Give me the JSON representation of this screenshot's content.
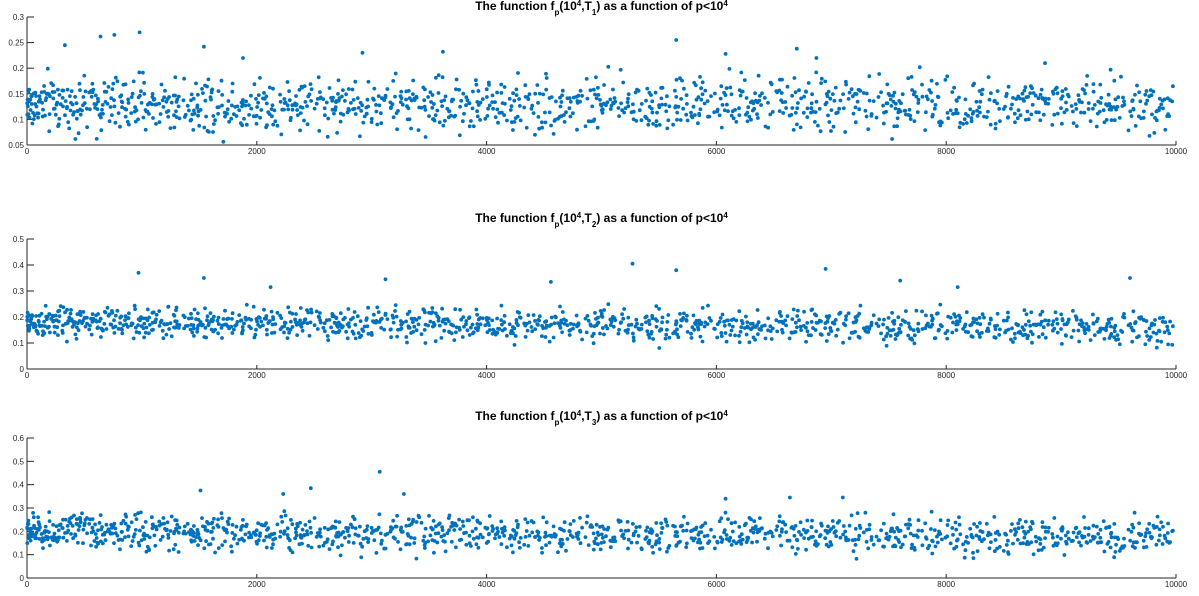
{
  "chart_data": [
    {
      "type": "scatter",
      "title_parts": [
        [
          "The function f",
          ""
        ],
        [
          "p",
          "sub"
        ],
        [
          "(10",
          ""
        ],
        [
          "4",
          "sup"
        ],
        [
          ",T",
          ""
        ],
        [
          "1",
          "sub"
        ],
        [
          ") as a function of p<10",
          ""
        ],
        [
          "4",
          "sup"
        ]
      ],
      "xlim": [
        0,
        10000
      ],
      "ylim": [
        0.05,
        0.3
      ],
      "xticks": [
        "0",
        "2000",
        "4000",
        "6000",
        "8000",
        "10000"
      ],
      "yticks": [
        "0.05",
        "0.1",
        "0.15",
        "0.2",
        "0.25",
        "0.3"
      ],
      "series": [
        {
          "color": "#0072BD",
          "n_points": 1229,
          "y_typical_range": [
            0.06,
            0.2
          ],
          "y_max": 0.27,
          "approx_points": [
            [
              980,
              0.27
            ],
            [
              760,
              0.265
            ],
            [
              640,
              0.262
            ],
            [
              5650,
              0.255
            ],
            [
              1540,
              0.242
            ],
            [
              330,
              0.245
            ],
            [
              6700,
              0.238
            ],
            [
              3620,
              0.232
            ],
            [
              2920,
              0.23
            ],
            [
              6080,
              0.228
            ],
            [
              6870,
              0.22
            ],
            [
              8860,
              0.21
            ],
            [
              1880,
              0.22
            ],
            [
              7770,
              0.202
            ]
          ]
        }
      ]
    },
    {
      "type": "scatter",
      "title_parts": [
        [
          "The function f",
          ""
        ],
        [
          "p",
          "sub"
        ],
        [
          "(10",
          ""
        ],
        [
          "4",
          "sup"
        ],
        [
          ",T",
          ""
        ],
        [
          "2",
          "sub"
        ],
        [
          ") as a function of p<10",
          ""
        ],
        [
          "4",
          "sup"
        ]
      ],
      "xlim": [
        0,
        10000
      ],
      "ylim": [
        0,
        0.5
      ],
      "xticks": [
        "0",
        "2000",
        "4000",
        "6000",
        "8000",
        "10000"
      ],
      "yticks": [
        "0",
        "0.1",
        "0.2",
        "0.3",
        "0.4",
        "0.5"
      ],
      "series": [
        {
          "color": "#0072BD",
          "n_points": 1229,
          "y_typical_range": [
            0.1,
            0.26
          ],
          "y_max": 0.41,
          "approx_points": [
            [
              5270,
              0.405
            ],
            [
              6950,
              0.385
            ],
            [
              5650,
              0.38
            ],
            [
              970,
              0.37
            ],
            [
              1540,
              0.35
            ],
            [
              9600,
              0.35
            ],
            [
              3120,
              0.345
            ],
            [
              7600,
              0.34
            ],
            [
              4560,
              0.335
            ],
            [
              8100,
              0.315
            ],
            [
              2120,
              0.315
            ]
          ]
        }
      ]
    },
    {
      "type": "scatter",
      "title_parts": [
        [
          "The function f",
          ""
        ],
        [
          "p",
          "sub"
        ],
        [
          "(10",
          ""
        ],
        [
          "4",
          "sup"
        ],
        [
          ",T",
          ""
        ],
        [
          "3",
          "sub"
        ],
        [
          ") as a function of p<10",
          ""
        ],
        [
          "4",
          "sup"
        ]
      ],
      "xlim": [
        0,
        10000
      ],
      "ylim": [
        0,
        0.6
      ],
      "xticks": [
        "0",
        "2000",
        "4000",
        "6000",
        "8000",
        "10000"
      ],
      "yticks": [
        "0",
        "0.1",
        "0.2",
        "0.3",
        "0.4",
        "0.5",
        "0.6"
      ],
      "series": [
        {
          "color": "#0072BD",
          "n_points": 1229,
          "y_typical_range": [
            0.1,
            0.3
          ],
          "y_max": 0.46,
          "approx_points": [
            [
              3070,
              0.455
            ],
            [
              2470,
              0.385
            ],
            [
              1510,
              0.375
            ],
            [
              3280,
              0.36
            ],
            [
              2230,
              0.36
            ],
            [
              6640,
              0.345
            ],
            [
              7100,
              0.345
            ],
            [
              6080,
              0.34
            ],
            [
              9640,
              0.28
            ]
          ]
        }
      ]
    }
  ]
}
